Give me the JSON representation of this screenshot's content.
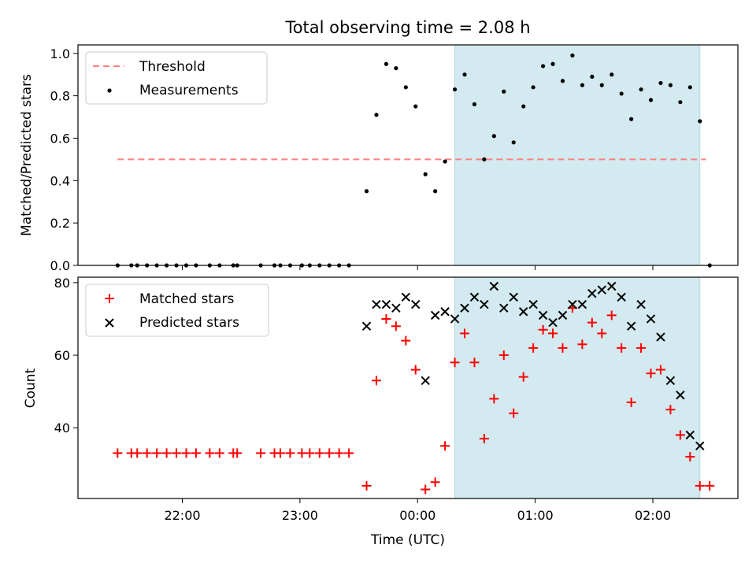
{
  "chart_data": {
    "type": "scatter",
    "title": "Total observing time = 2.08 h",
    "shaded_window": {
      "start": "00:19",
      "end": "02:24",
      "color": "#d3eaf0"
    },
    "panels": [
      {
        "ylabel": "Matched/Predicted stars",
        "ylim": [
          0,
          1.04
        ],
        "yticks": [
          "0.0",
          "0.2",
          "0.4",
          "0.6",
          "0.8",
          "1.0"
        ],
        "legend_loc": "upper left",
        "threshold": {
          "name": "Threshold",
          "y": 0.5,
          "x_range": [
            "21:27",
            "02:27"
          ],
          "color": "#ff7f7f"
        },
        "series": [
          {
            "name": "Measurements",
            "marker": "dot",
            "color": "#000000",
            "points": [
              {
                "x": "21:27",
                "y": 0
              },
              {
                "x": "21:34",
                "y": 0
              },
              {
                "x": "21:37",
                "y": 0
              },
              {
                "x": "21:42",
                "y": 0
              },
              {
                "x": "21:47",
                "y": 0
              },
              {
                "x": "21:52",
                "y": 0
              },
              {
                "x": "21:57",
                "y": 0
              },
              {
                "x": "22:02",
                "y": 0
              },
              {
                "x": "22:07",
                "y": 0
              },
              {
                "x": "22:14",
                "y": 0
              },
              {
                "x": "22:19",
                "y": 0
              },
              {
                "x": "22:26",
                "y": 0
              },
              {
                "x": "22:28",
                "y": 0
              },
              {
                "x": "22:40",
                "y": 0
              },
              {
                "x": "22:47",
                "y": 0
              },
              {
                "x": "22:50",
                "y": 0
              },
              {
                "x": "22:55",
                "y": 0
              },
              {
                "x": "23:01",
                "y": 0
              },
              {
                "x": "23:05",
                "y": 0
              },
              {
                "x": "23:10",
                "y": 0
              },
              {
                "x": "23:15",
                "y": 0
              },
              {
                "x": "23:20",
                "y": 0
              },
              {
                "x": "23:25",
                "y": 0
              },
              {
                "x": "23:34",
                "y": 0.35
              },
              {
                "x": "23:39",
                "y": 0.71
              },
              {
                "x": "23:44",
                "y": 0.95
              },
              {
                "x": "23:49",
                "y": 0.93
              },
              {
                "x": "23:54",
                "y": 0.84
              },
              {
                "x": "23:59",
                "y": 0.75
              },
              {
                "x": "00:04",
                "y": 0.43
              },
              {
                "x": "00:09",
                "y": 0.35
              },
              {
                "x": "00:14",
                "y": 0.49
              },
              {
                "x": "00:19",
                "y": 0.83
              },
              {
                "x": "00:24",
                "y": 0.9
              },
              {
                "x": "00:29",
                "y": 0.76
              },
              {
                "x": "00:34",
                "y": 0.5
              },
              {
                "x": "00:39",
                "y": 0.61
              },
              {
                "x": "00:44",
                "y": 0.82
              },
              {
                "x": "00:49",
                "y": 0.58
              },
              {
                "x": "00:54",
                "y": 0.75
              },
              {
                "x": "00:59",
                "y": 0.84
              },
              {
                "x": "01:04",
                "y": 0.94
              },
              {
                "x": "01:09",
                "y": 0.95
              },
              {
                "x": "01:14",
                "y": 0.87
              },
              {
                "x": "01:19",
                "y": 0.99
              },
              {
                "x": "01:24",
                "y": 0.85
              },
              {
                "x": "01:29",
                "y": 0.89
              },
              {
                "x": "01:34",
                "y": 0.85
              },
              {
                "x": "01:39",
                "y": 0.9
              },
              {
                "x": "01:44",
                "y": 0.81
              },
              {
                "x": "01:49",
                "y": 0.69
              },
              {
                "x": "01:54",
                "y": 0.83
              },
              {
                "x": "01:59",
                "y": 0.78
              },
              {
                "x": "02:04",
                "y": 0.86
              },
              {
                "x": "02:09",
                "y": 0.85
              },
              {
                "x": "02:14",
                "y": 0.77
              },
              {
                "x": "02:19",
                "y": 0.84
              },
              {
                "x": "02:24",
                "y": 0.68
              },
              {
                "x": "02:29",
                "y": 0
              }
            ]
          }
        ]
      },
      {
        "ylabel": "Count",
        "xlabel": "Time (UTC)",
        "ylim": [
          20.5,
          81.5
        ],
        "yticks": [
          "40",
          "60",
          "80"
        ],
        "xticks": [
          "22:00",
          "23:00",
          "00:00",
          "01:00",
          "02:00"
        ],
        "legend_loc": "upper left",
        "series": [
          {
            "name": "Matched stars",
            "marker": "plus",
            "color": "#ff0000",
            "points": [
              {
                "x": "21:27",
                "y": 33
              },
              {
                "x": "21:34",
                "y": 33
              },
              {
                "x": "21:37",
                "y": 33
              },
              {
                "x": "21:42",
                "y": 33
              },
              {
                "x": "21:47",
                "y": 33
              },
              {
                "x": "21:52",
                "y": 33
              },
              {
                "x": "21:57",
                "y": 33
              },
              {
                "x": "22:02",
                "y": 33
              },
              {
                "x": "22:07",
                "y": 33
              },
              {
                "x": "22:14",
                "y": 33
              },
              {
                "x": "22:19",
                "y": 33
              },
              {
                "x": "22:26",
                "y": 33
              },
              {
                "x": "22:28",
                "y": 33
              },
              {
                "x": "22:40",
                "y": 33
              },
              {
                "x": "22:47",
                "y": 33
              },
              {
                "x": "22:50",
                "y": 33
              },
              {
                "x": "22:55",
                "y": 33
              },
              {
                "x": "23:01",
                "y": 33
              },
              {
                "x": "23:05",
                "y": 33
              },
              {
                "x": "23:10",
                "y": 33
              },
              {
                "x": "23:15",
                "y": 33
              },
              {
                "x": "23:20",
                "y": 33
              },
              {
                "x": "23:25",
                "y": 33
              },
              {
                "x": "23:34",
                "y": 24
              },
              {
                "x": "23:39",
                "y": 53
              },
              {
                "x": "23:44",
                "y": 70
              },
              {
                "x": "23:49",
                "y": 68
              },
              {
                "x": "23:54",
                "y": 64
              },
              {
                "x": "23:59",
                "y": 56
              },
              {
                "x": "00:04",
                "y": 23
              },
              {
                "x": "00:09",
                "y": 25
              },
              {
                "x": "00:14",
                "y": 35
              },
              {
                "x": "00:19",
                "y": 58
              },
              {
                "x": "00:24",
                "y": 66
              },
              {
                "x": "00:29",
                "y": 58
              },
              {
                "x": "00:34",
                "y": 37
              },
              {
                "x": "00:39",
                "y": 48
              },
              {
                "x": "00:44",
                "y": 60
              },
              {
                "x": "00:49",
                "y": 44
              },
              {
                "x": "00:54",
                "y": 54
              },
              {
                "x": "00:59",
                "y": 62
              },
              {
                "x": "01:04",
                "y": 67
              },
              {
                "x": "01:09",
                "y": 66
              },
              {
                "x": "01:14",
                "y": 62
              },
              {
                "x": "01:19",
                "y": 73
              },
              {
                "x": "01:24",
                "y": 63
              },
              {
                "x": "01:29",
                "y": 69
              },
              {
                "x": "01:34",
                "y": 66
              },
              {
                "x": "01:39",
                "y": 71
              },
              {
                "x": "01:44",
                "y": 62
              },
              {
                "x": "01:49",
                "y": 47
              },
              {
                "x": "01:54",
                "y": 62
              },
              {
                "x": "01:59",
                "y": 55
              },
              {
                "x": "02:04",
                "y": 56
              },
              {
                "x": "02:09",
                "y": 45
              },
              {
                "x": "02:14",
                "y": 38
              },
              {
                "x": "02:19",
                "y": 32
              },
              {
                "x": "02:24",
                "y": 24
              },
              {
                "x": "02:29",
                "y": 24
              }
            ]
          },
          {
            "name": "Predicted stars",
            "marker": "x",
            "color": "#000000",
            "points": [
              {
                "x": "23:34",
                "y": 68
              },
              {
                "x": "23:39",
                "y": 74
              },
              {
                "x": "23:44",
                "y": 74
              },
              {
                "x": "23:49",
                "y": 73
              },
              {
                "x": "23:54",
                "y": 76
              },
              {
                "x": "23:59",
                "y": 74
              },
              {
                "x": "00:04",
                "y": 53
              },
              {
                "x": "00:09",
                "y": 71
              },
              {
                "x": "00:14",
                "y": 72
              },
              {
                "x": "00:19",
                "y": 70
              },
              {
                "x": "00:24",
                "y": 73
              },
              {
                "x": "00:29",
                "y": 76
              },
              {
                "x": "00:34",
                "y": 74
              },
              {
                "x": "00:39",
                "y": 79
              },
              {
                "x": "00:44",
                "y": 73
              },
              {
                "x": "00:49",
                "y": 76
              },
              {
                "x": "00:54",
                "y": 72
              },
              {
                "x": "00:59",
                "y": 74
              },
              {
                "x": "01:04",
                "y": 71
              },
              {
                "x": "01:09",
                "y": 69
              },
              {
                "x": "01:14",
                "y": 71
              },
              {
                "x": "01:19",
                "y": 74
              },
              {
                "x": "01:24",
                "y": 74
              },
              {
                "x": "01:29",
                "y": 77
              },
              {
                "x": "01:34",
                "y": 78
              },
              {
                "x": "01:39",
                "y": 79
              },
              {
                "x": "01:44",
                "y": 76
              },
              {
                "x": "01:49",
                "y": 68
              },
              {
                "x": "01:54",
                "y": 74
              },
              {
                "x": "01:59",
                "y": 70
              },
              {
                "x": "02:04",
                "y": 65
              },
              {
                "x": "02:09",
                "y": 53
              },
              {
                "x": "02:14",
                "y": 49
              },
              {
                "x": "02:19",
                "y": 38
              },
              {
                "x": "02:24",
                "y": 35
              }
            ]
          }
        ]
      }
    ]
  }
}
